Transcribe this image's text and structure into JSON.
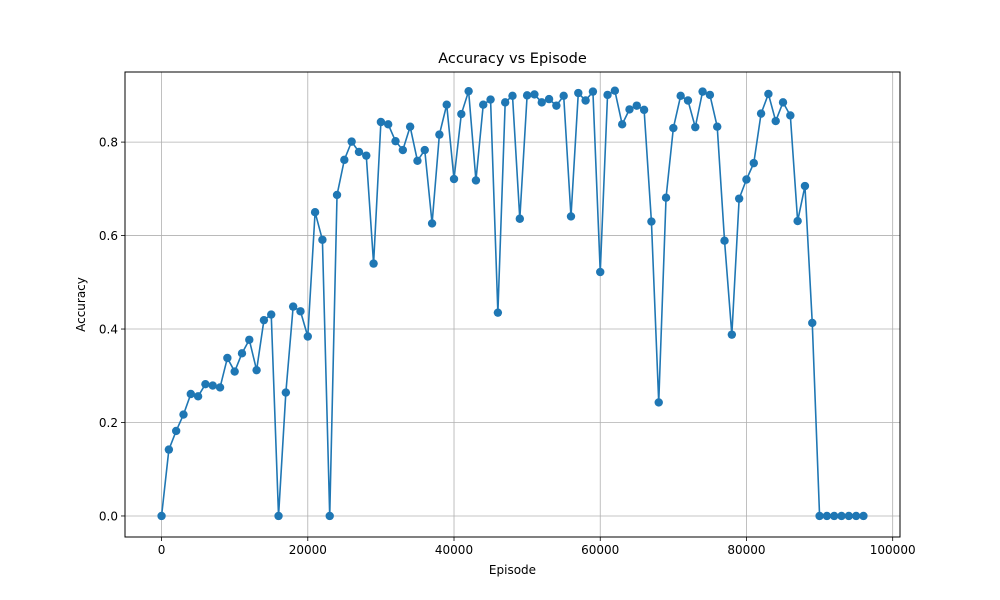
{
  "chart_data": {
    "type": "line",
    "title": "Accuracy vs Episode",
    "xlabel": "Episode",
    "ylabel": "Accuracy",
    "xlim": [
      -5000,
      101000
    ],
    "ylim": [
      -0.045,
      0.95
    ],
    "xticks": [
      0,
      20000,
      40000,
      60000,
      80000,
      100000
    ],
    "xtick_labels": [
      "0",
      "20000",
      "40000",
      "60000",
      "80000",
      "100000"
    ],
    "yticks": [
      0.0,
      0.2,
      0.4,
      0.6,
      0.8
    ],
    "ytick_labels": [
      "0.0",
      "0.2",
      "0.4",
      "0.6",
      "0.8"
    ],
    "grid": true,
    "marker": "circle",
    "color": "#1f77b4",
    "x": [
      0,
      1000,
      2000,
      3000,
      4000,
      5000,
      6000,
      7000,
      8000,
      9000,
      10000,
      11000,
      12000,
      13000,
      14000,
      15000,
      16000,
      17000,
      18000,
      19000,
      20000,
      21000,
      22000,
      23000,
      24000,
      25000,
      26000,
      27000,
      28000,
      29000,
      30000,
      31000,
      32000,
      33000,
      34000,
      35000,
      36000,
      37000,
      38000,
      39000,
      40000,
      41000,
      42000,
      43000,
      44000,
      45000,
      46000,
      47000,
      48000,
      49000,
      50000,
      51000,
      52000,
      53000,
      54000,
      55000,
      56000,
      57000,
      58000,
      59000,
      60000,
      61000,
      62000,
      63000,
      64000,
      65000,
      66000,
      67000,
      68000,
      69000,
      70000,
      71000,
      72000,
      73000,
      74000,
      75000,
      76000,
      77000,
      78000,
      79000,
      80000,
      81000,
      82000,
      83000,
      84000,
      85000,
      86000,
      87000,
      88000,
      89000,
      90000,
      91000,
      92000,
      93000,
      94000,
      95000,
      96000
    ],
    "y": [
      0.0,
      0.142,
      0.182,
      0.217,
      0.261,
      0.256,
      0.282,
      0.279,
      0.275,
      0.338,
      0.309,
      0.348,
      0.377,
      0.312,
      0.419,
      0.431,
      0.0,
      0.264,
      0.448,
      0.438,
      0.384,
      0.65,
      0.591,
      0.0,
      0.687,
      0.762,
      0.801,
      0.779,
      0.771,
      0.54,
      0.843,
      0.838,
      0.802,
      0.783,
      0.833,
      0.76,
      0.783,
      0.626,
      0.816,
      0.88,
      0.721,
      0.86,
      0.909,
      0.718,
      0.88,
      0.891,
      0.435,
      0.885,
      0.899,
      0.636,
      0.9,
      0.902,
      0.885,
      0.892,
      0.878,
      0.899,
      0.641,
      0.905,
      0.889,
      0.908,
      0.522,
      0.901,
      0.91,
      0.838,
      0.87,
      0.878,
      0.869,
      0.63,
      0.243,
      0.681,
      0.83,
      0.899,
      0.889,
      0.832,
      0.908,
      0.901,
      0.833,
      0.589,
      0.388,
      0.679,
      0.72,
      0.755,
      0.861,
      0.903,
      0.845,
      0.885,
      0.857,
      0.631,
      0.706,
      0.413,
      0.0,
      0.0,
      0.0,
      0.0,
      0.0,
      0.0,
      0.0
    ]
  }
}
